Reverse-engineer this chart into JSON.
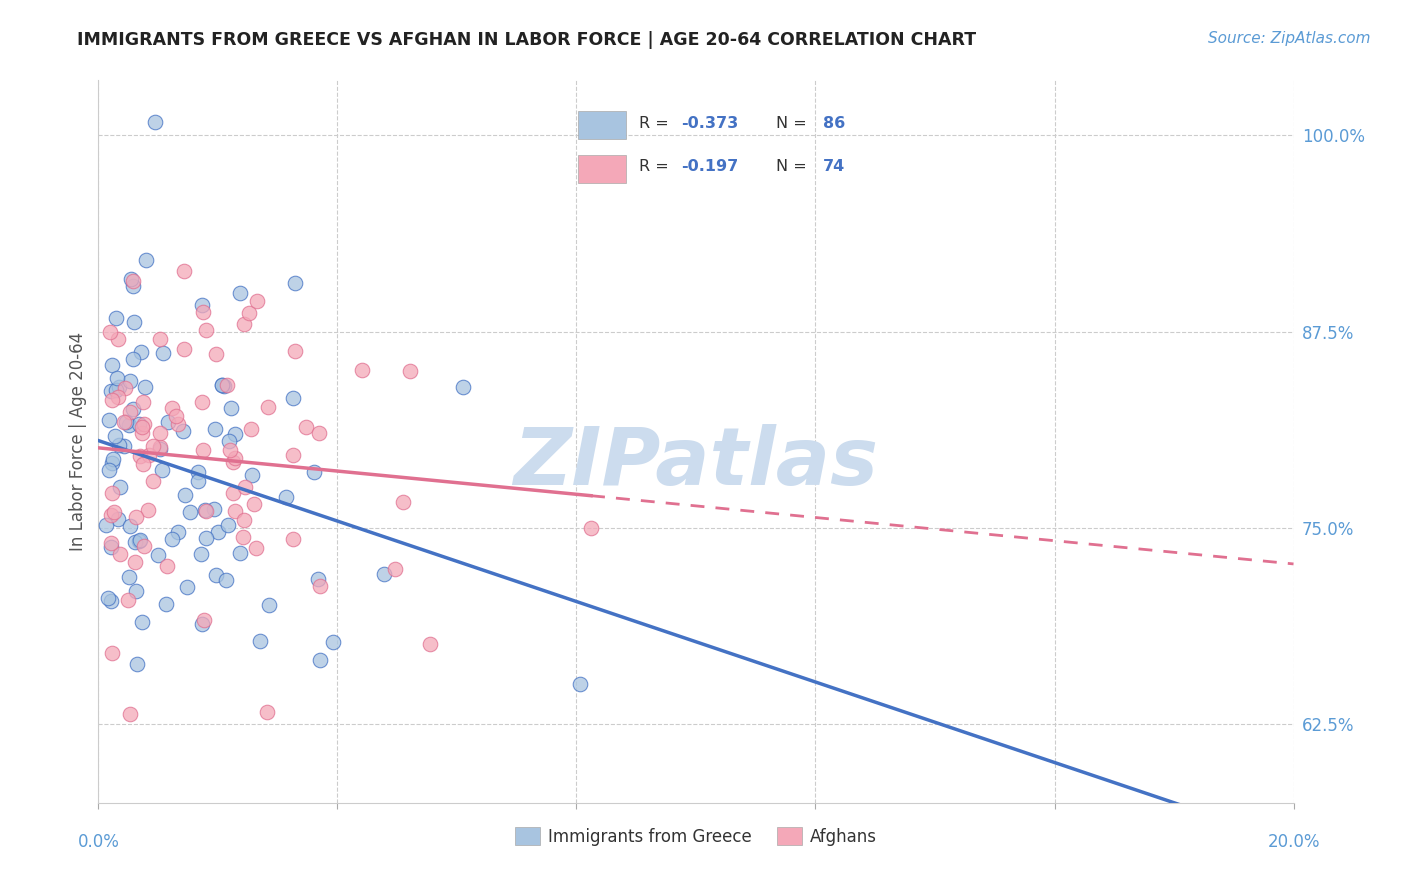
{
  "title": "IMMIGRANTS FROM GREECE VS AFGHAN IN LABOR FORCE | AGE 20-64 CORRELATION CHART",
  "source": "Source: ZipAtlas.com",
  "ylabel": "In Labor Force | Age 20-64",
  "y_tick_labels": [
    "62.5%",
    "75.0%",
    "87.5%",
    "100.0%"
  ],
  "y_tick_values": [
    0.625,
    0.75,
    0.875,
    1.0
  ],
  "xlim": [
    0.0,
    0.2
  ],
  "ylim": [
    0.575,
    1.035
  ],
  "watermark": "ZIPatlas",
  "legend_r1": "-0.373",
  "legend_n1": "86",
  "legend_r2": "-0.197",
  "legend_n2": "74",
  "color_greece": "#a8c4e0",
  "color_afghan": "#f4a8b8",
  "color_greece_line": "#4472c4",
  "color_afghan_line": "#e07090",
  "color_right_axis": "#5b9bd5",
  "color_watermark": "#ccdcee",
  "color_title": "#222222",
  "color_source": "#5b9bd5",
  "color_legend_text": "#333333",
  "n_greece": 86,
  "n_afghan": 74
}
